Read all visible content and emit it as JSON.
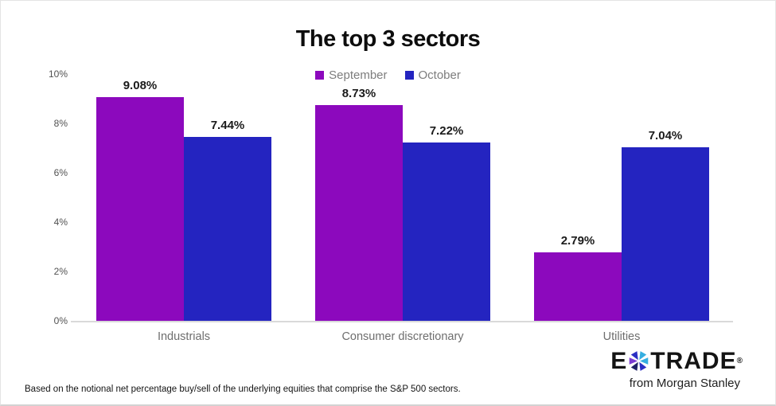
{
  "chart_data": {
    "type": "bar",
    "title": "The top 3 sectors",
    "categories": [
      "Industrials",
      "Consumer discretionary",
      "Utilities"
    ],
    "series": [
      {
        "name": "September",
        "color": "#8C09BD",
        "values": [
          9.08,
          8.73,
          2.79
        ]
      },
      {
        "name": "October",
        "color": "#2424C0",
        "values": [
          7.44,
          7.22,
          7.04
        ]
      }
    ],
    "data_labels": [
      [
        "9.08%",
        "8.73%",
        "2.79%"
      ],
      [
        "7.44%",
        "7.22%",
        "7.04%"
      ]
    ],
    "ylim": [
      0,
      10
    ],
    "yticks": [
      "0%",
      "2%",
      "4%",
      "6%",
      "8%",
      "10%"
    ],
    "grid": false,
    "legend_position": "top-center",
    "value_suffix": "%"
  },
  "footnote": "Based on the notional net percentage buy/sell of the underlying equities that comprise the S&P 500 sectors.",
  "logo": {
    "brand_e": "E",
    "brand_rest": "TRADE",
    "registered_mark": "®",
    "tagline": "from Morgan Stanley",
    "colors": {
      "purple": "#7B3BD2",
      "royal": "#2B2FC4",
      "teal": "#35AEE0",
      "navy": "#1E2166"
    }
  }
}
